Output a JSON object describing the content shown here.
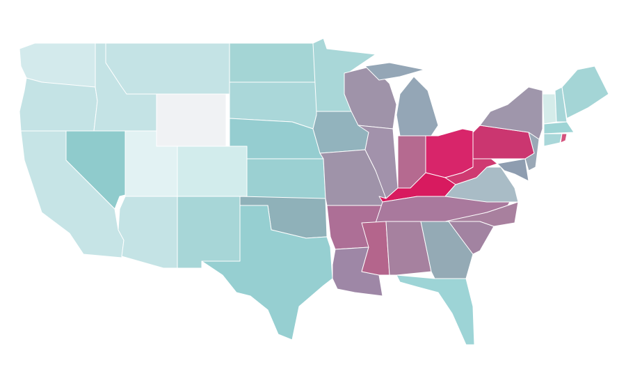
{
  "map": {
    "fills": [
      "#d3eaec",
      "#c4e3e5",
      "#c6e4e6",
      "#8fcbcc",
      "#c4e3e5",
      "#c4e3e5",
      "#f0f2f4",
      "#e2f2f3",
      "#d2ecec",
      "#c4e3e5",
      "#a7d6d7",
      "#a4d5d5",
      "#aad7d9",
      "#95cdd0",
      "#9bd0d2",
      "#8fb1b9",
      "#96cfd1",
      "#a9d7d8",
      "#92b3bd",
      "#9f93a9",
      "#ad6f96",
      "#9e87a6",
      "#9f93a9",
      "#a292ab",
      "#94a6b6",
      "#94a6b6",
      "#b56a90",
      "#d8256a",
      "#d81a5f",
      "#a9799d",
      "#b4658c",
      "#a6819f",
      "#94aab5",
      "#9dd4d6",
      "#a283a1",
      "#a8809e",
      "#a9bcc6",
      "#cf3a71",
      "#cb3670",
      "#9f96ab",
      "#8e9db0",
      "#9aa8b6",
      "#d5ecea",
      "#a7d6d8",
      "#a4d5d6",
      "#9ed4d5",
      "#a9d7d9",
      "#d4537e"
    ]
  }
}
